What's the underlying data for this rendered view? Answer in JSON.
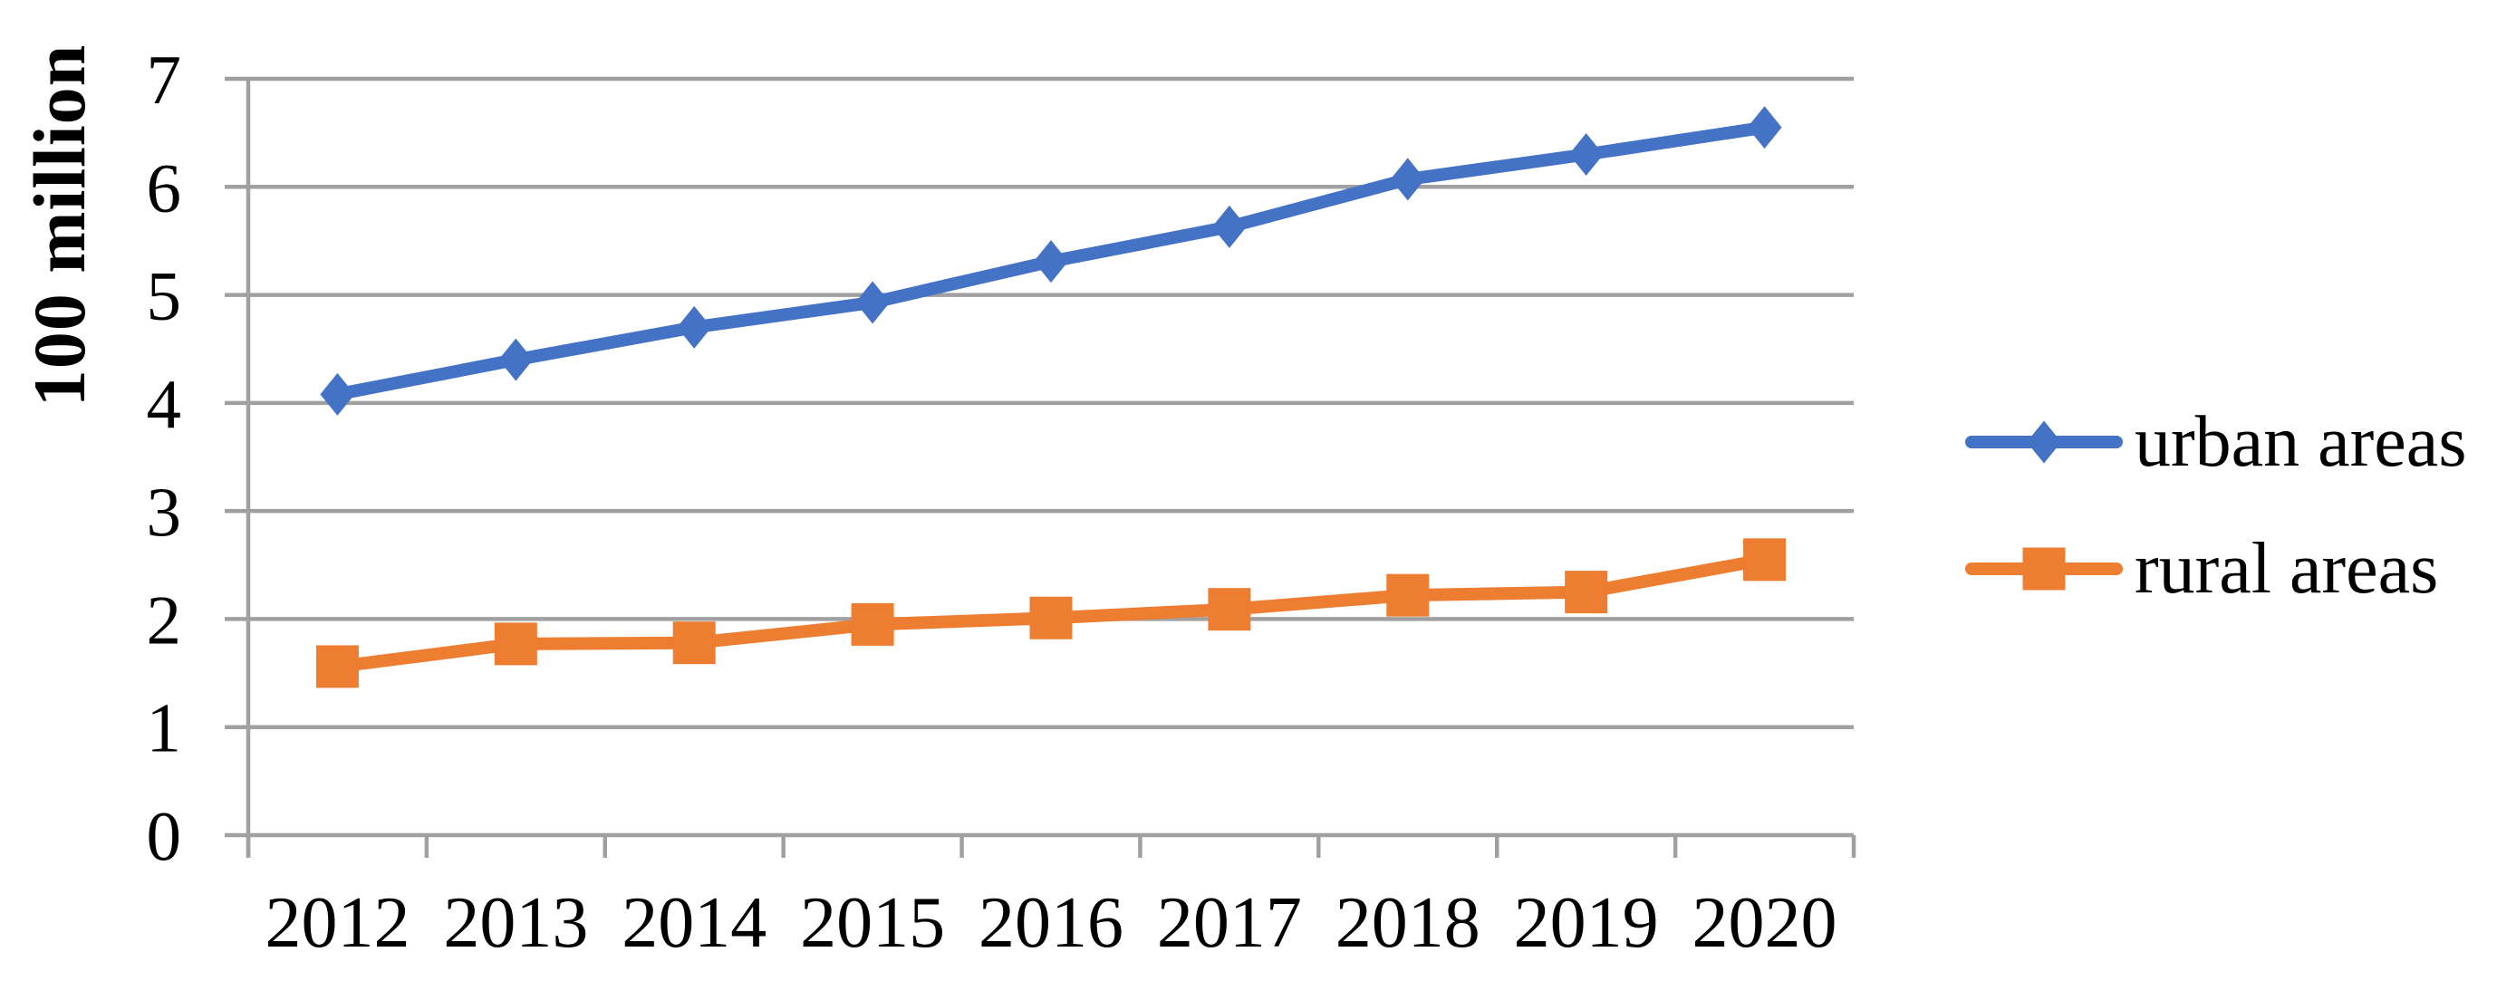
{
  "chart_data": {
    "type": "line",
    "title": "",
    "ylabel": "100 million",
    "xlabel": "",
    "ylim": [
      0,
      7
    ],
    "ytick_step": 1,
    "ytick_labels": [
      "0",
      "1",
      "2",
      "3",
      "4",
      "5",
      "6",
      "7"
    ],
    "categories": [
      "2012",
      "2013",
      "2014",
      "2015",
      "2016",
      "2017",
      "2018",
      "2019",
      "2020"
    ],
    "series": [
      {
        "name": "urban areas",
        "color": "#4472C4",
        "marker": "diamond",
        "values": [
          4.08,
          4.4,
          4.7,
          4.93,
          5.31,
          5.63,
          6.07,
          6.3,
          6.55
        ]
      },
      {
        "name": "rural areas",
        "color": "#ED7D31",
        "marker": "square",
        "values": [
          1.56,
          1.77,
          1.78,
          1.95,
          2.01,
          2.09,
          2.22,
          2.25,
          2.55
        ]
      }
    ],
    "grid": "horizontal",
    "legend_position": "right",
    "axis_color": "#A0A0A0",
    "background_color": "#FFFFFF",
    "text_color": "#000000"
  }
}
